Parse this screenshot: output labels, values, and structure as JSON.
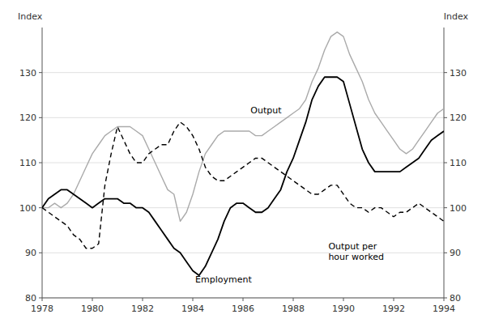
{
  "chart_data": {
    "type": "line",
    "y_label": "Index",
    "y2_label": "Index",
    "xlim": [
      1978,
      1994
    ],
    "xticks": [
      1978,
      1980,
      1982,
      1984,
      1986,
      1988,
      1990,
      1992,
      1994
    ],
    "ylim": [
      80,
      140
    ],
    "yticks": [
      80,
      90,
      100,
      110,
      120,
      130
    ],
    "y2lim": [
      80,
      140
    ],
    "y2ticks": [
      80,
      90,
      100,
      110,
      120,
      130
    ],
    "grid": true,
    "x": [
      1978.0,
      1978.25,
      1978.5,
      1978.75,
      1979.0,
      1979.25,
      1979.5,
      1979.75,
      1980.0,
      1980.25,
      1980.5,
      1980.75,
      1981.0,
      1981.25,
      1981.5,
      1981.75,
      1982.0,
      1982.25,
      1982.5,
      1982.75,
      1983.0,
      1983.25,
      1983.5,
      1983.75,
      1984.0,
      1984.25,
      1984.5,
      1984.75,
      1985.0,
      1985.25,
      1985.5,
      1985.75,
      1986.0,
      1986.25,
      1986.5,
      1986.75,
      1987.0,
      1987.25,
      1987.5,
      1987.75,
      1988.0,
      1988.25,
      1988.5,
      1988.75,
      1989.0,
      1989.25,
      1989.5,
      1989.75,
      1990.0,
      1990.25,
      1990.5,
      1990.75,
      1991.0,
      1991.25,
      1991.5,
      1991.75,
      1992.0,
      1992.25,
      1992.5,
      1992.75,
      1993.0,
      1993.25,
      1993.5,
      1993.75,
      1994.0
    ],
    "series": [
      {
        "color": "#aaaaaa",
        "line_style": "solid",
        "values": [
          100,
          100,
          101,
          100,
          101,
          103,
          106,
          109,
          112,
          114,
          116,
          117,
          118,
          118,
          118,
          117,
          116,
          113,
          110,
          107,
          104,
          103,
          97,
          99,
          103,
          108,
          112,
          114,
          116,
          117,
          117,
          117,
          117,
          117,
          116,
          116,
          117,
          118,
          119,
          120,
          121,
          122,
          124,
          128,
          131,
          135,
          138,
          139,
          138,
          134,
          131,
          128,
          124,
          121,
          119,
          117,
          115,
          113,
          112,
          113,
          115,
          117,
          119,
          121,
          122
        ]
      },
      {
        "color": "#000000",
        "line_style": "solid",
        "values": [
          100,
          102,
          103,
          104,
          104,
          103,
          102,
          101,
          100,
          101,
          102,
          102,
          102,
          101,
          101,
          100,
          100,
          99,
          97,
          95,
          93,
          91,
          90,
          88,
          86,
          85,
          87,
          90,
          93,
          97,
          100,
          101,
          101,
          100,
          99,
          99,
          100,
          102,
          104,
          108,
          111,
          115,
          119,
          124,
          127,
          129,
          129,
          129,
          128,
          123,
          118,
          113,
          110,
          108,
          108,
          108,
          108,
          108,
          109,
          110,
          111,
          113,
          115,
          116,
          117
        ]
      },
      {
        "color": "#000000",
        "line_style": "dashed",
        "values": [
          100,
          99,
          98,
          97,
          96,
          94,
          93,
          91,
          91,
          92,
          105,
          112,
          118,
          115,
          112,
          110,
          110,
          112,
          113,
          114,
          114,
          117,
          119,
          118,
          116,
          113,
          109,
          107,
          106,
          106,
          107,
          108,
          109,
          110,
          111,
          111,
          110,
          109,
          108,
          107,
          106,
          105,
          104,
          103,
          103,
          104,
          105,
          105,
          103,
          101,
          100,
          100,
          99,
          100,
          100,
          99,
          98,
          99,
          99,
          100,
          101,
          100,
          99,
          98,
          97
        ]
      }
    ],
    "annotations": [
      {
        "text": "Output",
        "x": 1986.3,
        "y": 121
      },
      {
        "text": "Employment",
        "x": 1984.1,
        "y": 83.5
      },
      {
        "text": "Output per\nhour worked",
        "x": 1989.4,
        "y": 88.5
      }
    ]
  }
}
